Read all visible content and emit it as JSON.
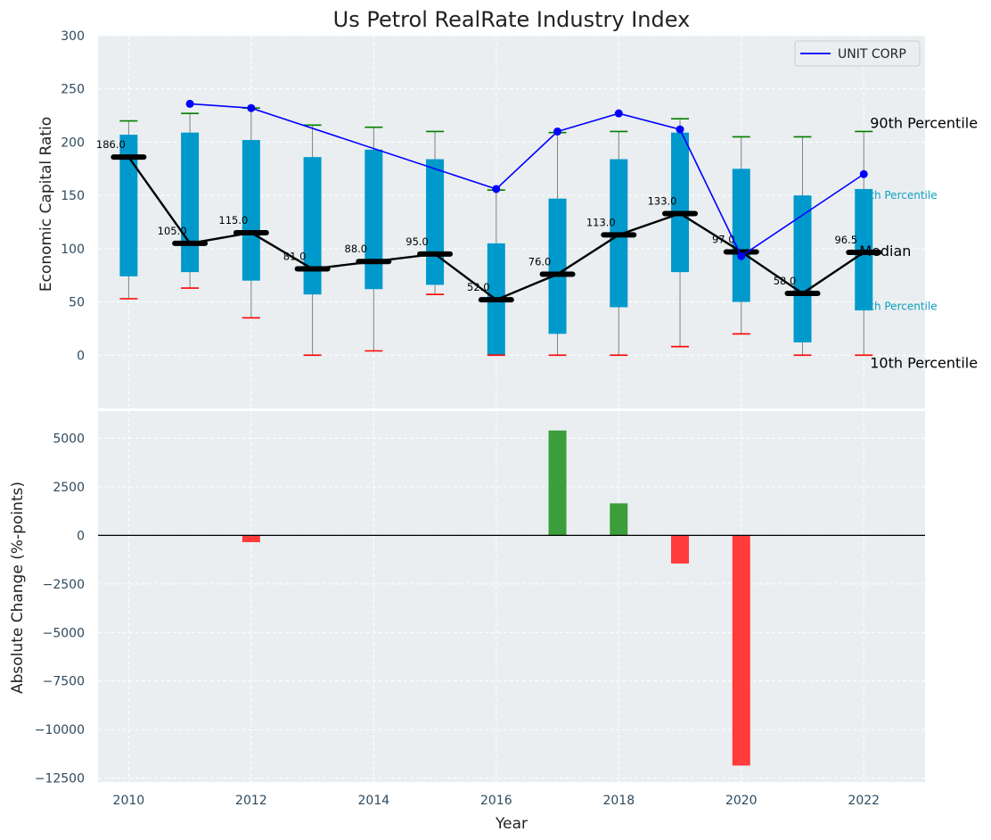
{
  "chart_data": [
    {
      "type": "box",
      "title": "Us Petrol RealRate Industry Index",
      "ylabel": "Economic Capital Ratio",
      "ylim": [
        -50,
        300
      ],
      "yticks": [
        0,
        50,
        100,
        150,
        200,
        250,
        300
      ],
      "legend": {
        "position": "top-right",
        "entries": [
          {
            "label": "UNIT CORP",
            "color": "#0000ff"
          }
        ]
      },
      "years": [
        2010,
        2011,
        2012,
        2013,
        2014,
        2015,
        2016,
        2017,
        2018,
        2019,
        2020,
        2021,
        2022
      ],
      "p10": [
        53,
        63,
        35,
        0,
        4,
        57,
        0,
        0,
        0,
        8,
        20,
        0,
        0
      ],
      "p25": [
        74,
        78,
        70,
        57,
        62,
        66,
        0,
        20,
        45,
        78,
        50,
        12,
        42
      ],
      "median": [
        186,
        105,
        115,
        81,
        88,
        95,
        52,
        76,
        113,
        133,
        97,
        58,
        96.5
      ],
      "median_labels": [
        "186.0",
        "105.0",
        "115.0",
        "81.0",
        "88.0",
        "95.0",
        "52.0",
        "76.0",
        "113.0",
        "133.0",
        "97.0",
        "58.0",
        "96.5"
      ],
      "p75": [
        207,
        209,
        202,
        186,
        193,
        184,
        105,
        147,
        184,
        209,
        175,
        150,
        156
      ],
      "p90": [
        220,
        227,
        232,
        216,
        214,
        210,
        155,
        209,
        210,
        222,
        205,
        205,
        210
      ],
      "company_series": {
        "name": "UNIT CORP",
        "years": [
          2011,
          2012,
          2016,
          2017,
          2018,
          2019,
          2020,
          2022
        ],
        "values": [
          236,
          232,
          156,
          210,
          227,
          212,
          93,
          170
        ]
      },
      "annotations": {
        "p90": "90th Percentile",
        "p75": "th Percentile",
        "median": "Median",
        "p25": "th Percentile",
        "p10": "10th Percentile"
      },
      "colors": {
        "box": "#0099cc",
        "median_line": "#000000",
        "company": "#0000ff",
        "p90_cap": "#008000",
        "p10_cap": "#ff0000",
        "whisker": "#808080"
      }
    },
    {
      "type": "bar",
      "ylabel": "Absolute Change (%-points)",
      "xlabel": "Year",
      "ylim": [
        -12700,
        6400
      ],
      "yticks": [
        -12500,
        -10000,
        -7500,
        -5000,
        -2500,
        0,
        2500,
        5000
      ],
      "xticks": [
        2010,
        2012,
        2014,
        2016,
        2018,
        2020,
        2022
      ],
      "xlim": [
        2009.5,
        2023
      ],
      "years": [
        2012,
        2017,
        2018,
        2019,
        2020
      ],
      "values": [
        -350,
        5400,
        1650,
        -1450,
        -11850
      ],
      "colors": {
        "positive": "#3a9e3a",
        "negative": "#ff3b3b"
      }
    }
  ]
}
